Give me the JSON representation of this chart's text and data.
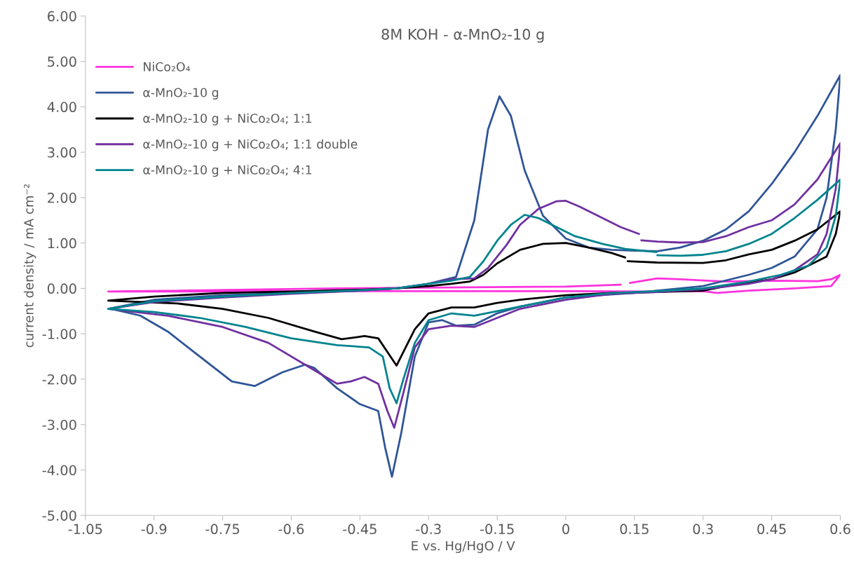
{
  "chart_data": {
    "type": "line",
    "title": "8M KOH - α-MnO₂-10 g",
    "xlabel": "E vs. Hg/HgO / V",
    "ylabel": "current density / mA cm⁻²",
    "xlim": [
      -1.05,
      0.6
    ],
    "xticks": [
      -1.05,
      -0.9,
      -0.75,
      -0.6,
      -0.45,
      -0.3,
      -0.15,
      0,
      0.15,
      0.3,
      0.45,
      0.6
    ],
    "ylim": [
      -5,
      6
    ],
    "yticks": [
      {
        "value": -5,
        "label": "-5.00"
      },
      {
        "value": -4,
        "label": "-4.00"
      },
      {
        "value": -3,
        "label": "-3.00"
      },
      {
        "value": -2,
        "label": "-2.00"
      },
      {
        "value": -1,
        "label": "-1.00"
      },
      {
        "value": 0,
        "label": "0.00"
      },
      {
        "value": 1,
        "label": "1.00"
      },
      {
        "value": 2,
        "label": "2.00"
      },
      {
        "value": 3,
        "label": "3.00"
      },
      {
        "value": 4,
        "label": "4.00"
      },
      {
        "value": 5,
        "label": "5.00"
      },
      {
        "value": 6,
        "label": "6.00"
      }
    ],
    "grid": false,
    "legend": "top left",
    "marker": "none",
    "line_style": "solid",
    "series": [
      {
        "name": "NiCo₂O₄",
        "color": "#ff33dd",
        "x": [
          -1.0,
          -0.5,
          0,
          0.12,
          0.125,
          0.14,
          0.2,
          0.25,
          0.35,
          0.45,
          0.55,
          0.58,
          0.6,
          0.58,
          0.5,
          0.4,
          0.33,
          0.3,
          0.2,
          0,
          -0.5,
          -1.0
        ],
        "values": [
          -0.07,
          0.0,
          0.04,
          0.08,
          null,
          0.12,
          0.22,
          0.2,
          0.15,
          0.17,
          0.16,
          0.2,
          0.3,
          0.05,
          0.0,
          -0.05,
          -0.1,
          -0.06,
          -0.07,
          -0.06,
          -0.06,
          -0.07
        ]
      },
      {
        "name": "α-MnO₂-10 g",
        "color": "#2f5597",
        "x": [
          -1.0,
          -0.9,
          -0.75,
          -0.6,
          -0.45,
          -0.37,
          -0.3,
          -0.27,
          -0.24,
          -0.2,
          -0.17,
          -0.145,
          -0.12,
          -0.09,
          -0.05,
          0,
          0.05,
          0.1,
          0.15,
          0.2,
          0.25,
          0.3,
          0.35,
          0.4,
          0.45,
          0.5,
          0.55,
          0.6,
          0.59,
          0.57,
          0.55,
          0.5,
          0.45,
          0.4,
          0.3,
          0.15,
          0,
          -0.1,
          -0.15,
          -0.2,
          -0.24,
          -0.27,
          -0.3,
          -0.33,
          -0.36,
          -0.38,
          -0.395,
          -0.41,
          -0.45,
          -0.5,
          -0.55,
          -0.57,
          -0.62,
          -0.68,
          -0.73,
          -0.8,
          -0.87,
          -0.93,
          -0.99
        ],
        "values": [
          -0.45,
          -0.25,
          -0.15,
          -0.1,
          -0.05,
          0.0,
          0.1,
          0.18,
          0.25,
          1.5,
          3.5,
          4.23,
          3.8,
          2.6,
          1.6,
          1.1,
          0.9,
          0.85,
          0.83,
          0.82,
          0.9,
          1.05,
          1.3,
          1.7,
          2.3,
          3.0,
          3.8,
          4.7,
          3.5,
          2.0,
          1.3,
          0.7,
          0.45,
          0.3,
          0.05,
          -0.1,
          -0.2,
          -0.4,
          -0.55,
          -0.8,
          -0.82,
          -0.7,
          -0.75,
          -1.5,
          -3.2,
          -4.15,
          -3.5,
          -2.7,
          -2.55,
          -2.2,
          -1.75,
          -1.68,
          -1.85,
          -2.15,
          -2.05,
          -1.5,
          -0.95,
          -0.6,
          -0.46
        ]
      },
      {
        "name": "α-MnO₂-10 g + NiCo₂O₄; 1:1",
        "color": "#000000",
        "x": [
          -1.0,
          -0.9,
          -0.75,
          -0.6,
          -0.45,
          -0.37,
          -0.3,
          -0.25,
          -0.21,
          -0.18,
          -0.15,
          -0.1,
          -0.05,
          0,
          0.05,
          0.1,
          0.13,
          0.132,
          0.135,
          0.2,
          0.3,
          0.35,
          0.4,
          0.45,
          0.5,
          0.55,
          0.6,
          0.59,
          0.57,
          0.5,
          0.45,
          0.35,
          0.3,
          0.2,
          0.1,
          0,
          -0.1,
          -0.15,
          -0.2,
          -0.25,
          -0.3,
          -0.33,
          -0.37,
          -0.39,
          -0.41,
          -0.44,
          -0.49,
          -0.55,
          -0.65,
          -0.75,
          -0.85,
          -1.0
        ],
        "values": [
          -0.27,
          -0.18,
          -0.1,
          -0.07,
          -0.03,
          0.0,
          0.05,
          0.1,
          0.15,
          0.3,
          0.55,
          0.85,
          0.98,
          1.0,
          0.9,
          0.78,
          0.68,
          null,
          0.6,
          0.57,
          0.56,
          0.62,
          0.75,
          0.85,
          1.05,
          1.3,
          1.7,
          1.2,
          0.7,
          0.35,
          0.2,
          0.05,
          -0.05,
          -0.08,
          -0.1,
          -0.15,
          -0.25,
          -0.32,
          -0.42,
          -0.42,
          -0.55,
          -0.9,
          -1.7,
          -1.4,
          -1.1,
          -1.05,
          -1.12,
          -0.95,
          -0.65,
          -0.45,
          -0.33,
          -0.27
        ]
      },
      {
        "name": "α-MnO₂-10 g + NiCo₂O₄; 1:1 double",
        "color": "#7030a0",
        "x": [
          -1.0,
          -0.9,
          -0.75,
          -0.6,
          -0.45,
          -0.37,
          -0.3,
          -0.25,
          -0.2,
          -0.17,
          -0.13,
          -0.1,
          -0.06,
          -0.02,
          0.0,
          0.03,
          0.08,
          0.12,
          0.16,
          0.163,
          0.165,
          0.2,
          0.25,
          0.3,
          0.35,
          0.4,
          0.45,
          0.5,
          0.55,
          0.6,
          0.59,
          0.57,
          0.55,
          0.5,
          0.45,
          0.4,
          0.3,
          0.2,
          0.1,
          0,
          -0.1,
          -0.15,
          -0.2,
          -0.25,
          -0.3,
          -0.33,
          -0.355,
          -0.375,
          -0.39,
          -0.41,
          -0.44,
          -0.47,
          -0.5,
          -0.55,
          -0.65,
          -0.75,
          -0.87,
          -1.0
        ],
        "values": [
          -0.45,
          -0.3,
          -0.2,
          -0.12,
          -0.05,
          0.0,
          0.1,
          0.2,
          0.22,
          0.45,
          0.95,
          1.4,
          1.75,
          1.92,
          1.93,
          1.8,
          1.55,
          1.35,
          1.2,
          null,
          1.06,
          1.03,
          1.01,
          1.02,
          1.15,
          1.35,
          1.5,
          1.85,
          2.4,
          3.2,
          2.2,
          1.2,
          0.75,
          0.4,
          0.2,
          0.1,
          -0.02,
          -0.08,
          -0.12,
          -0.25,
          -0.45,
          -0.65,
          -0.85,
          -0.82,
          -0.9,
          -1.3,
          -2.3,
          -3.07,
          -2.7,
          -2.1,
          -1.95,
          -2.05,
          -2.1,
          -1.8,
          -1.2,
          -0.85,
          -0.6,
          -0.45
        ]
      },
      {
        "name": "α-MnO₂-10 g + NiCo₂O₄; 4:1",
        "color": "#00848e",
        "x": [
          -1.0,
          -0.9,
          -0.75,
          -0.6,
          -0.45,
          -0.37,
          -0.3,
          -0.25,
          -0.21,
          -0.18,
          -0.15,
          -0.12,
          -0.09,
          -0.06,
          -0.02,
          0.02,
          0.08,
          0.13,
          0.198,
          0.199,
          0.2,
          0.25,
          0.3,
          0.35,
          0.4,
          0.45,
          0.5,
          0.55,
          0.6,
          0.59,
          0.57,
          0.53,
          0.47,
          0.4,
          0.3,
          0.2,
          0.1,
          0,
          -0.1,
          -0.15,
          -0.2,
          -0.25,
          -0.3,
          -0.33,
          -0.355,
          -0.37,
          -0.385,
          -0.4,
          -0.43,
          -0.5,
          -0.6,
          -0.7,
          -0.8,
          -0.9,
          -1.0
        ],
        "values": [
          -0.45,
          -0.28,
          -0.18,
          -0.1,
          -0.04,
          0.0,
          0.1,
          0.17,
          0.25,
          0.6,
          1.05,
          1.4,
          1.62,
          1.55,
          1.35,
          1.15,
          0.98,
          0.87,
          0.8,
          null,
          0.73,
          0.72,
          0.74,
          0.82,
          0.98,
          1.2,
          1.55,
          1.95,
          2.4,
          1.6,
          0.9,
          0.5,
          0.3,
          0.15,
          0.0,
          -0.06,
          -0.1,
          -0.2,
          -0.4,
          -0.5,
          -0.6,
          -0.55,
          -0.7,
          -1.2,
          -2.0,
          -2.53,
          -2.2,
          -1.5,
          -1.3,
          -1.25,
          -1.1,
          -0.85,
          -0.65,
          -0.52,
          -0.45
        ]
      }
    ]
  }
}
